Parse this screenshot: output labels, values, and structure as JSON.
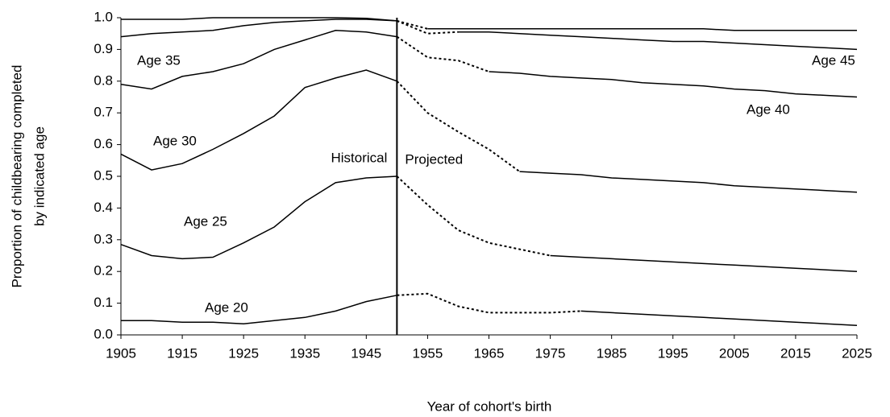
{
  "chart_data": {
    "type": "line",
    "xlabel": "Year of cohort's birth",
    "ylabel": [
      "Proportion of childbearing completed",
      "by indicated age"
    ],
    "annotations": [
      "Historical",
      "Projected"
    ],
    "divider_x": 1950,
    "x": [
      1905,
      1910,
      1915,
      1920,
      1925,
      1930,
      1935,
      1940,
      1945,
      1950,
      1955,
      1960,
      1965,
      1970,
      1975,
      1980,
      1985,
      1990,
      1995,
      2000,
      2005,
      2010,
      2015,
      2020,
      2025
    ],
    "series": [
      {
        "name": "Age 20",
        "color": "#000000",
        "dotted_x": [
          1950,
          1980
        ],
        "values": [
          0.045,
          0.045,
          0.04,
          0.04,
          0.035,
          0.045,
          0.055,
          0.075,
          0.105,
          0.125,
          0.13,
          0.09,
          0.07,
          0.07,
          0.07,
          0.075,
          0.07,
          0.065,
          0.06,
          0.055,
          0.05,
          0.045,
          0.04,
          0.035,
          0.03
        ]
      },
      {
        "name": "Age 25",
        "color": "#000000",
        "dotted_x": [
          1950,
          1975
        ],
        "values": [
          0.285,
          0.25,
          0.24,
          0.245,
          0.29,
          0.34,
          0.42,
          0.48,
          0.495,
          0.5,
          0.41,
          0.33,
          0.29,
          0.27,
          0.25,
          0.245,
          0.24,
          0.235,
          0.23,
          0.225,
          0.22,
          0.215,
          0.21,
          0.205,
          0.2
        ]
      },
      {
        "name": "Age 30",
        "color": "#000000",
        "dotted_x": [
          1950,
          1970
        ],
        "values": [
          0.57,
          0.52,
          0.54,
          0.585,
          0.635,
          0.69,
          0.78,
          0.81,
          0.835,
          0.8,
          0.7,
          0.64,
          0.585,
          0.515,
          0.51,
          0.505,
          0.495,
          0.49,
          0.485,
          0.48,
          0.47,
          0.465,
          0.46,
          0.455,
          0.45
        ]
      },
      {
        "name": "Age 35",
        "color": "#000000",
        "dotted_x": [
          1950,
          1965
        ],
        "values": [
          0.79,
          0.775,
          0.815,
          0.83,
          0.855,
          0.9,
          0.93,
          0.96,
          0.955,
          0.94,
          0.875,
          0.865,
          0.83,
          0.825,
          0.815,
          0.81,
          0.805,
          0.795,
          0.79,
          0.785,
          0.775,
          0.77,
          0.76,
          0.755,
          0.75
        ]
      },
      {
        "name": "Age 40",
        "color": "#000000",
        "dotted_x": [
          1950,
          1960
        ],
        "values": [
          0.94,
          0.95,
          0.955,
          0.96,
          0.975,
          0.985,
          0.99,
          0.995,
          0.995,
          0.99,
          0.95,
          0.955,
          0.955,
          0.95,
          0.945,
          0.94,
          0.935,
          0.93,
          0.925,
          0.925,
          0.92,
          0.915,
          0.91,
          0.905,
          0.9
        ]
      },
      {
        "name": "Age 45",
        "color": "#000000",
        "dotted_x": [
          1950,
          1955
        ],
        "values": [
          0.995,
          0.995,
          0.995,
          1.0,
          1.0,
          1.0,
          1.0,
          1.0,
          0.998,
          0.99,
          0.965,
          0.965,
          0.965,
          0.965,
          0.965,
          0.965,
          0.965,
          0.965,
          0.965,
          0.965,
          0.96,
          0.96,
          0.96,
          0.96,
          0.96
        ]
      }
    ],
    "xlim": [
      1905,
      2025
    ],
    "xticks": [
      1905,
      1915,
      1925,
      1935,
      1945,
      1955,
      1965,
      1975,
      1985,
      1995,
      2005,
      2015,
      2025
    ],
    "ylim": [
      0,
      1
    ],
    "yticks": [
      {
        "value": 0,
        "label": "0.0"
      },
      0.1,
      0.2,
      0.3,
      0.4,
      0.5,
      0.6,
      0.7,
      0.8,
      0.9,
      {
        "value": 1,
        "label": "1.0"
      }
    ],
    "grid": false
  }
}
